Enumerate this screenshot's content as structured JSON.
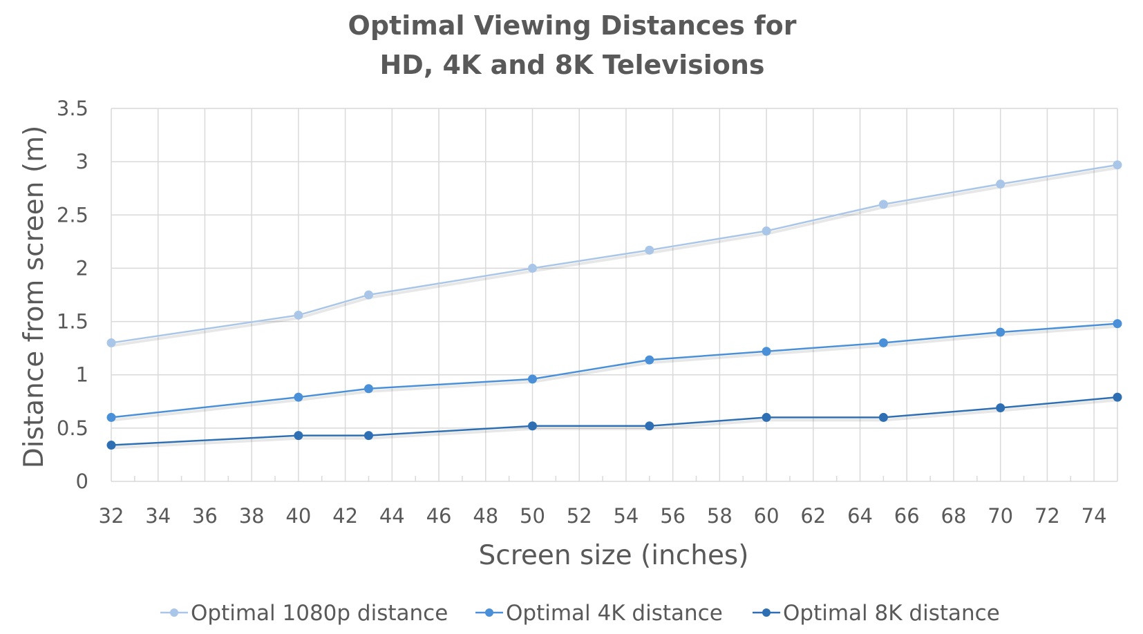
{
  "chart_data": {
    "type": "line",
    "title": [
      "Optimal Viewing Distances for",
      "HD, 4K and 8K Televisions"
    ],
    "xlabel": "Screen size (inches)",
    "ylabel": "Distance from screen (m)",
    "xlim": [
      32,
      75
    ],
    "ylim": [
      0,
      3.5
    ],
    "x_ticks": [
      "32",
      "34",
      "36",
      "38",
      "40",
      "42",
      "44",
      "46",
      "48",
      "50",
      "52",
      "54",
      "56",
      "58",
      "60",
      "62",
      "64",
      "66",
      "68",
      "70",
      "72",
      "74"
    ],
    "y_ticks": [
      "0",
      "0.5",
      "1",
      "1.5",
      "2",
      "2.5",
      "3",
      "3.5"
    ],
    "grid": true,
    "legend_position": "bottom",
    "x": [
      32,
      40,
      43,
      50,
      55,
      60,
      65,
      70,
      75
    ],
    "series": [
      {
        "name": "Optimal 1080p distance",
        "color": "#a9c6e8",
        "values": [
          1.3,
          1.56,
          1.75,
          2.0,
          2.17,
          2.35,
          2.6,
          2.79,
          2.97
        ]
      },
      {
        "name": "Optimal 4K distance",
        "color": "#4a90d9",
        "values": [
          0.6,
          0.79,
          0.87,
          0.96,
          1.14,
          1.22,
          1.3,
          1.4,
          1.48
        ]
      },
      {
        "name": "Optimal 8K distance",
        "color": "#2e6fb3",
        "values": [
          0.34,
          0.43,
          0.43,
          0.52,
          0.52,
          0.6,
          0.6,
          0.69,
          0.79
        ]
      }
    ]
  }
}
